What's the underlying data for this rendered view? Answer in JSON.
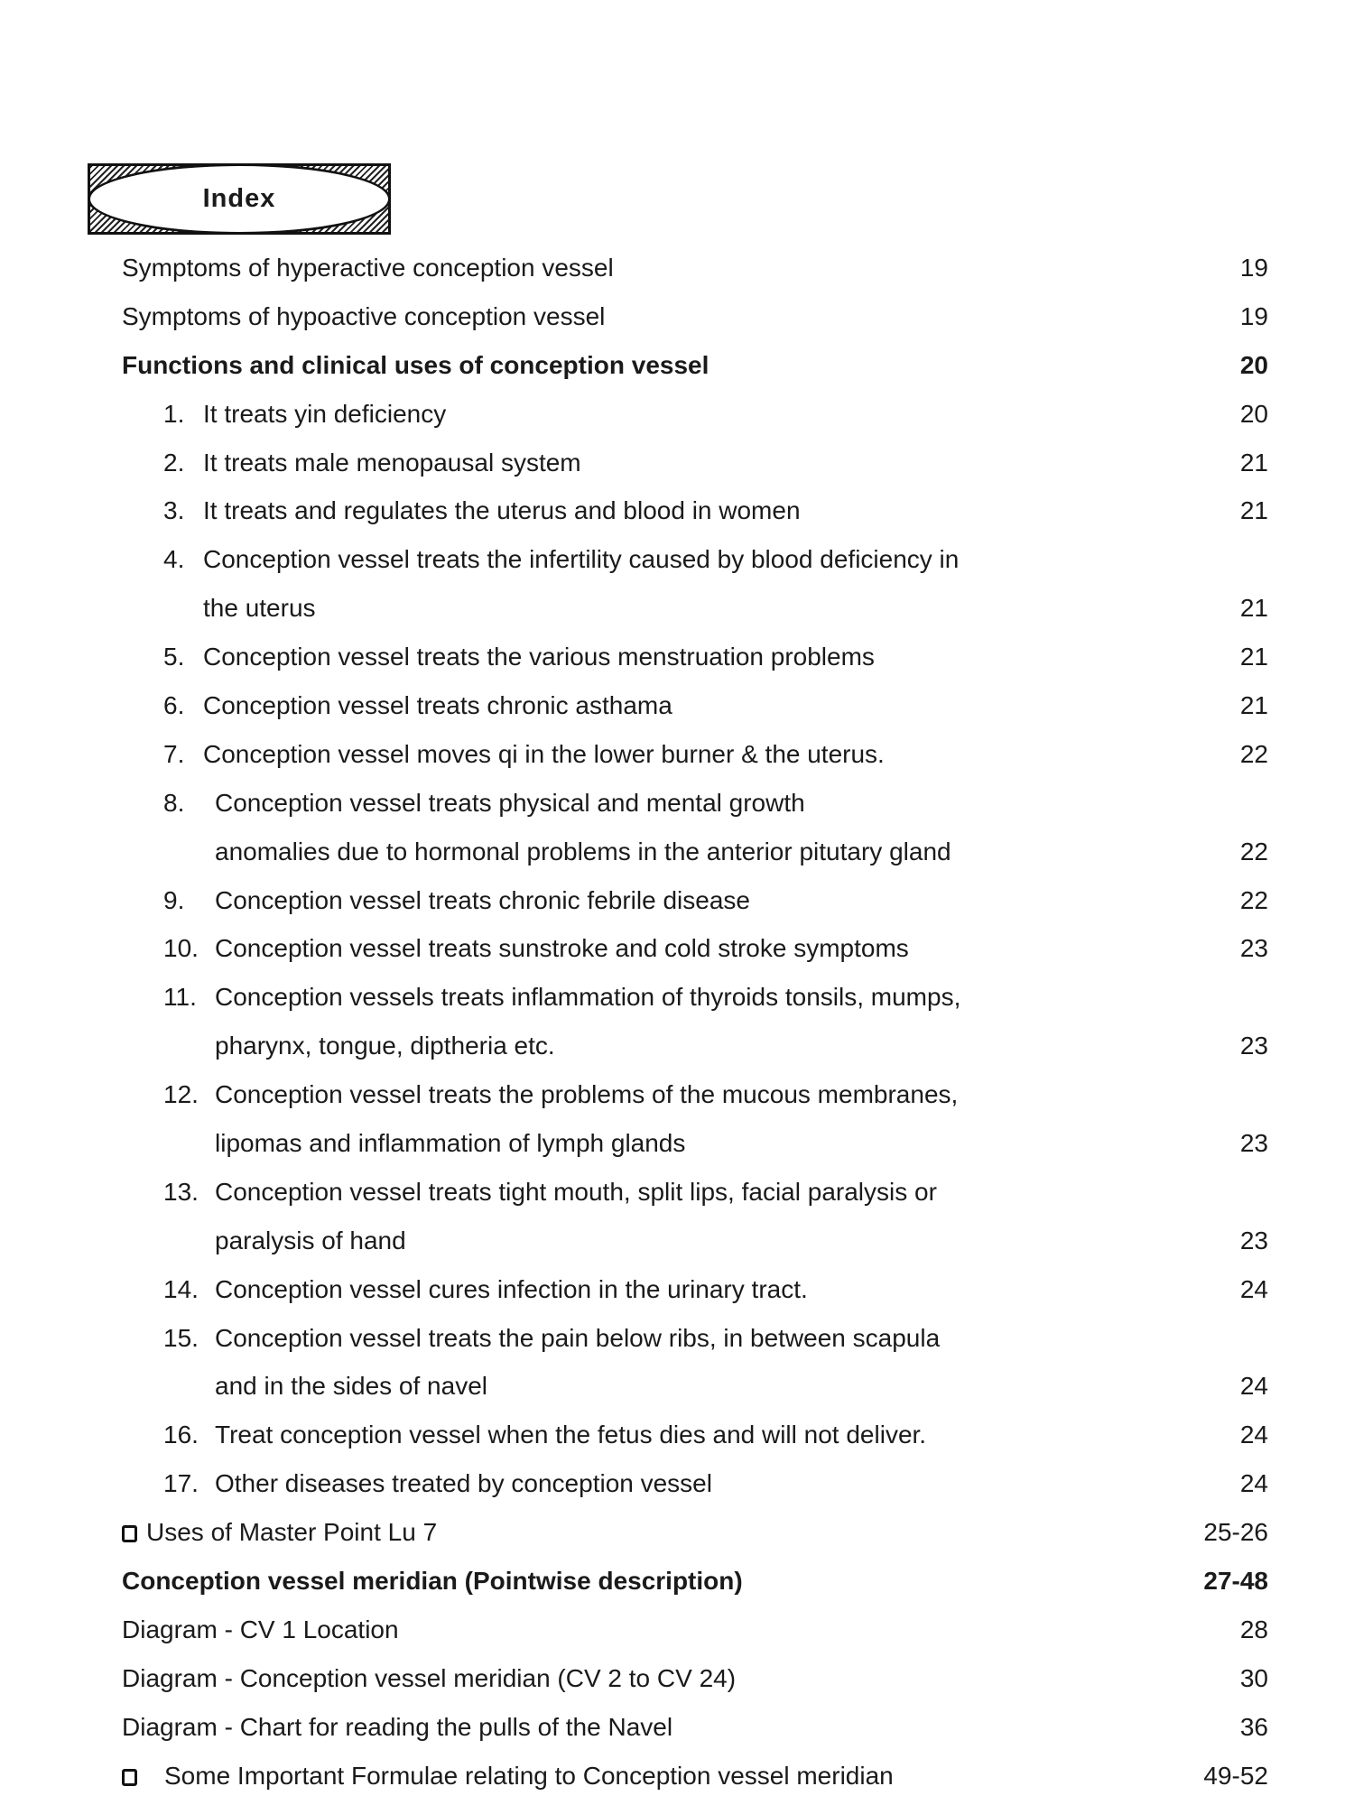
{
  "header": {
    "title": "Index"
  },
  "entries": [
    {
      "lines": [
        "Symptoms of hyperactive conception vessel"
      ],
      "page": "19"
    },
    {
      "lines": [
        "Symptoms of hypoactive conception vessel"
      ],
      "page": "19"
    },
    {
      "lines": [
        "Functions and clinical uses of conception vessel"
      ],
      "page": "20",
      "bold": true
    },
    {
      "num": "1.",
      "lines": [
        "It treats yin deficiency"
      ],
      "page": "20"
    },
    {
      "num": "2.",
      "lines": [
        "It treats male menopausal system"
      ],
      "page": "21"
    },
    {
      "num": "3.",
      "lines": [
        "It treats and regulates the uterus and blood in women"
      ],
      "page": "21"
    },
    {
      "num": "4.",
      "lines": [
        "Conception vessel treats the infertility caused by blood deficiency in",
        "the uterus"
      ],
      "page": "21"
    },
    {
      "num": "5.",
      "lines": [
        "Conception vessel treats the various menstruation problems"
      ],
      "page": "21"
    },
    {
      "num": "6.",
      "lines": [
        "Conception vessel treats chronic asthama"
      ],
      "page": "21"
    },
    {
      "num": "7.",
      "lines": [
        "Conception vessel moves qi in the lower burner & the uterus."
      ],
      "page": "22"
    },
    {
      "num": "8.",
      "lines": [
        "Conception vessel treats physical and mental growth",
        "anomalies due to hormonal problems in the anterior pitutary gland"
      ],
      "page": "22"
    },
    {
      "num": "9.",
      "lines": [
        "Conception vessel treats chronic febrile disease"
      ],
      "page": "22"
    },
    {
      "num": "10.",
      "lines": [
        "Conception vessel treats sunstroke and cold stroke symptoms"
      ],
      "page": "23"
    },
    {
      "num": "11.",
      "lines": [
        "Conception vessels treats inflammation of thyroids tonsils, mumps,",
        "pharynx,  tongue, diptheria etc."
      ],
      "page": "23"
    },
    {
      "num": "12.",
      "lines": [
        "Conception vessel treats the problems of the mucous membranes,",
        "lipomas and inflammation of lymph glands"
      ],
      "page": "23"
    },
    {
      "num": "13.",
      "lines": [
        "Conception vessel treats tight mouth, split lips, facial paralysis or",
        "paralysis of  hand"
      ],
      "page": "23"
    },
    {
      "num": "14.",
      "lines": [
        "Conception vessel cures infection in the urinary tract."
      ],
      "page": "24"
    },
    {
      "num": "15.",
      "lines": [
        "Conception vessel treats the pain below ribs, in between scapula",
        "and in the sides of navel"
      ],
      "page": "24"
    },
    {
      "num": "16.",
      "lines": [
        "Treat conception vessel when the fetus dies and will not deliver."
      ],
      "page": "24"
    },
    {
      "num": "17.",
      "lines": [
        "Other diseases treated by conception vessel"
      ],
      "page": "24"
    },
    {
      "checkbox": true,
      "lines": [
        "Uses of Master Point Lu 7"
      ],
      "page": "25-26"
    },
    {
      "lines": [
        "Conception vessel meridian (Pointwise description)"
      ],
      "page": "27-48",
      "bold": true
    },
    {
      "lines": [
        "Diagram - CV 1 Location"
      ],
      "page": "28"
    },
    {
      "lines": [
        "Diagram - Conception vessel meridian (CV 2  to CV 24)"
      ],
      "page": "30"
    },
    {
      "lines": [
        "Diagram - Chart for reading the pulls of the Navel"
      ],
      "page": "36"
    },
    {
      "checkbox": true,
      "wide": true,
      "lines": [
        "Some Important Formulae relating to Conception vessel meridian"
      ],
      "page": "49-52"
    }
  ]
}
